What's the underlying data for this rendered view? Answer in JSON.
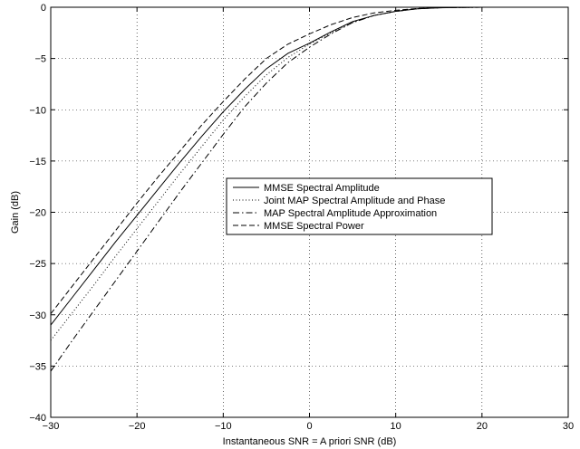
{
  "chart_data": {
    "type": "line",
    "title": "",
    "xlabel": "Instantaneous SNR = A priori SNR (dB)",
    "ylabel": "Gain (dB)",
    "xlim": [
      -30,
      30
    ],
    "ylim": [
      -40,
      0
    ],
    "xticks": [
      -30,
      -20,
      -10,
      0,
      10,
      20,
      30
    ],
    "yticks": [
      0,
      -5,
      -10,
      -15,
      -20,
      -25,
      -30,
      -35,
      -40
    ],
    "x_tick_labels": [
      "−30",
      "−20",
      "−10",
      "0",
      "10",
      "20",
      "30"
    ],
    "y_tick_labels": [
      "0",
      "−5",
      "−10",
      "−15",
      "−20",
      "−25",
      "−30",
      "−35",
      "−40"
    ],
    "grid": true,
    "grid_style": "dotted",
    "legend_position": "center-right",
    "series": [
      {
        "name": "MMSE Spectral Amplitude",
        "line_style": "solid",
        "color": "#000000",
        "x": [
          -30,
          -27.5,
          -25,
          -22.5,
          -20,
          -17.5,
          -15,
          -12.5,
          -10,
          -7.5,
          -5,
          -2.5,
          0,
          2.5,
          5,
          7.5,
          10,
          12.5,
          15,
          20,
          25,
          30
        ],
        "y": [
          -31.0,
          -28.3,
          -25.6,
          -22.9,
          -20.3,
          -17.7,
          -15.1,
          -12.6,
          -10.2,
          -8.0,
          -6.0,
          -4.5,
          -3.5,
          -2.4,
          -1.4,
          -0.8,
          -0.4,
          -0.15,
          -0.05,
          0,
          0,
          0
        ]
      },
      {
        "name": "Joint MAP Spectral Amplitude and Phase",
        "line_style": "dotted",
        "color": "#000000",
        "x": [
          -30,
          -27.5,
          -25,
          -22.5,
          -20,
          -17.5,
          -15,
          -12.5,
          -10,
          -7.5,
          -5,
          -2.5,
          0,
          2.5,
          5,
          7.5,
          10,
          12.5,
          15,
          20,
          25,
          30
        ],
        "y": [
          -32.5,
          -29.8,
          -27.1,
          -24.3,
          -21.6,
          -18.9,
          -16.2,
          -13.6,
          -11.0,
          -8.7,
          -6.6,
          -4.9,
          -3.6,
          -2.5,
          -1.5,
          -0.8,
          -0.4,
          -0.15,
          -0.05,
          0,
          0,
          0
        ]
      },
      {
        "name": "MAP Spectral Amplitude Approximation",
        "line_style": "dashdot",
        "color": "#000000",
        "x": [
          -30,
          -27.5,
          -25,
          -22.5,
          -20,
          -17.5,
          -15,
          -12.5,
          -10,
          -7.5,
          -5,
          -2.5,
          0,
          2.5,
          5,
          7.5,
          10,
          12.5,
          15,
          20,
          25,
          30
        ],
        "y": [
          -35.5,
          -32.5,
          -29.6,
          -26.7,
          -23.8,
          -20.9,
          -18.0,
          -15.2,
          -12.4,
          -9.7,
          -7.4,
          -5.4,
          -3.9,
          -2.6,
          -1.5,
          -0.8,
          -0.4,
          -0.15,
          -0.05,
          0,
          0,
          0
        ]
      },
      {
        "name": "MMSE Spectral Power",
        "line_style": "dashed",
        "color": "#000000",
        "x": [
          -30,
          -27.5,
          -25,
          -22.5,
          -20,
          -17.5,
          -15,
          -12.5,
          -10,
          -7.5,
          -5,
          -2.5,
          0,
          2.5,
          5,
          7.5,
          10,
          12.5,
          15,
          20,
          25,
          30
        ],
        "y": [
          -29.9,
          -27.2,
          -24.5,
          -21.8,
          -19.1,
          -16.5,
          -14.0,
          -11.5,
          -9.2,
          -7.0,
          -5.0,
          -3.6,
          -2.6,
          -1.7,
          -1.0,
          -0.55,
          -0.3,
          -0.12,
          -0.04,
          0,
          0,
          0
        ]
      }
    ]
  }
}
